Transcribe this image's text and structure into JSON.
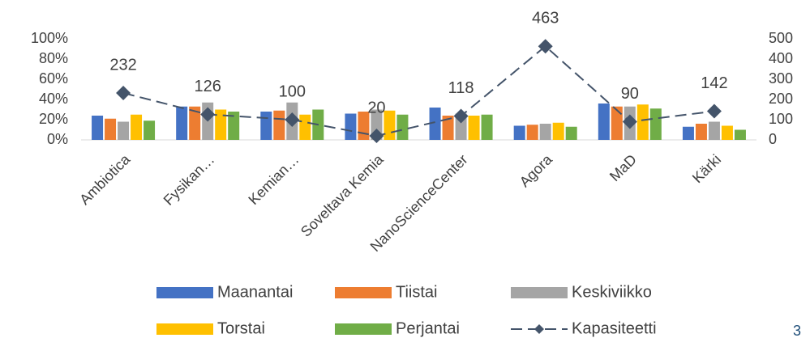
{
  "chart_data": {
    "type": "bar",
    "categories": [
      "Ambiotica",
      "Fysikan…",
      "Kemian…",
      "Soveltava Kemia",
      "NanoScienceCenter",
      "Agora",
      "MaD",
      "Kärki"
    ],
    "series": [
      {
        "name": "Maanantai",
        "color": "#4472c4",
        "values": [
          24,
          33,
          28,
          26,
          32,
          14,
          36,
          13
        ]
      },
      {
        "name": "Tiistai",
        "color": "#ed7d31",
        "values": [
          21,
          33,
          29,
          28,
          24,
          15,
          33,
          16
        ]
      },
      {
        "name": "Keskiviikko",
        "color": "#a5a5a5",
        "values": [
          18,
          37,
          37,
          30,
          26,
          16,
          33,
          18
        ]
      },
      {
        "name": "Torstai",
        "color": "#ffc000",
        "values": [
          25,
          30,
          25,
          29,
          24,
          17,
          35,
          14
        ]
      },
      {
        "name": "Perjantai",
        "color": "#70ad47",
        "values": [
          19,
          28,
          30,
          25,
          25,
          13,
          31,
          10
        ]
      },
      {
        "name": "Kapasiteetti",
        "color": "#44546a",
        "type": "line",
        "axis": "y2",
        "values": [
          232,
          126,
          100,
          20,
          118,
          463,
          90,
          142
        ]
      }
    ],
    "ylim": [
      0,
      100
    ],
    "yticks": [
      {
        "value": 0,
        "label": "0%"
      },
      {
        "value": 20,
        "label": "20%"
      },
      {
        "value": 40,
        "label": "40%"
      },
      {
        "value": 60,
        "label": "60%"
      },
      {
        "value": 80,
        "label": "80%"
      },
      {
        "value": 100,
        "label": "100%"
      }
    ],
    "y2lim": [
      0,
      500
    ],
    "y2ticks": [
      0,
      100,
      200,
      300,
      400,
      500
    ],
    "legend": "bottom",
    "page_number": "3"
  }
}
